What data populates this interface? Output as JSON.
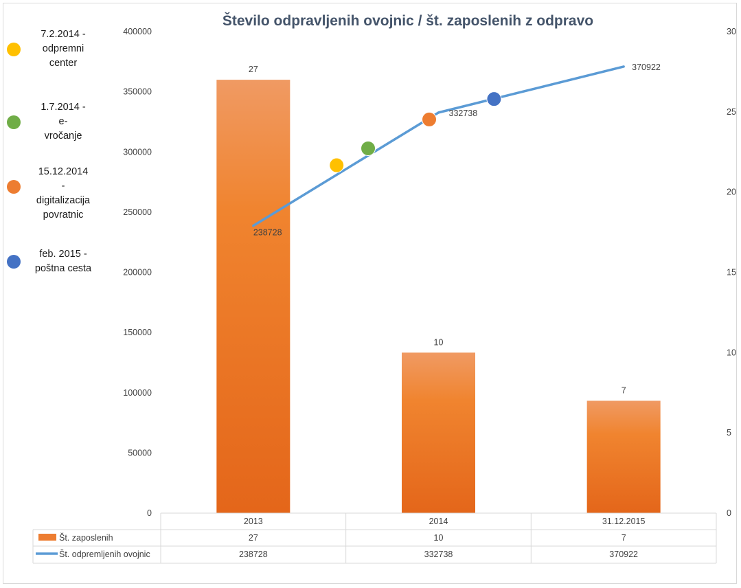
{
  "chart_data": {
    "type": "bar+line",
    "title": "Število odpravljenih ovojnic / št. zaposlenih z odpravo",
    "categories": [
      "2013",
      "2014",
      "31.12.2015"
    ],
    "y_left": {
      "ticks": [
        "0",
        "50000",
        "100000",
        "150000",
        "200000",
        "250000",
        "300000",
        "350000",
        "400000"
      ],
      "ylim": [
        0,
        400000
      ]
    },
    "y_right": {
      "ticks": [
        "0",
        "5",
        "10",
        "15",
        "20",
        "25",
        "30"
      ],
      "ylim": [
        0,
        30
      ]
    },
    "series": [
      {
        "name": "Št. zaposlenih",
        "type": "bar",
        "axis": "right",
        "values": [
          27,
          10,
          7
        ],
        "labels": [
          "27",
          "10",
          "7"
        ],
        "color": "#ed7d31"
      },
      {
        "name": "Št. odpremljenih ovojnic",
        "type": "line",
        "axis": "left",
        "values": [
          238728,
          332738,
          370922
        ],
        "labels": [
          "238728",
          "332738",
          "370922"
        ],
        "color": "#5b9bd5"
      }
    ],
    "data_table": {
      "rows": [
        {
          "legend": "Št. zaposlenih",
          "values": [
            "27",
            "10",
            "7"
          ]
        },
        {
          "legend": "Št. odpremljenih ovojnic",
          "values": [
            "238728",
            "332738",
            "370922"
          ]
        }
      ]
    },
    "event_markers": [
      {
        "label": "7.2.2014 - odpremni center",
        "color": "#ffc000",
        "x": 1.45,
        "y": 289000
      },
      {
        "label": "1.7.2014 - e-vročanje",
        "color": "#70ad47",
        "x": 1.62,
        "y": 303000
      },
      {
        "label": "15.12.2014 - digitalizacija povratnic",
        "color": "#ed7d31",
        "x": 1.95,
        "y": 327000
      },
      {
        "label": "feb. 2015 - poštna cesta",
        "color": "#4472c4",
        "x": 2.3,
        "y": 344000
      }
    ],
    "grid": false
  },
  "legend_events": [
    {
      "lines": [
        "7.2.2014 -",
        "odpremni",
        "center"
      ],
      "color": "#ffc000"
    },
    {
      "lines": [
        "1.7.2014 -",
        "e-",
        "vročanje"
      ],
      "color": "#70ad47"
    },
    {
      "lines": [
        "15.12.2014",
        "-",
        "digitalizacija",
        "povratnic"
      ],
      "color": "#ed7d31"
    },
    {
      "lines": [
        "feb. 2015 -",
        "poštna cesta"
      ],
      "color": "#4472c4"
    }
  ]
}
